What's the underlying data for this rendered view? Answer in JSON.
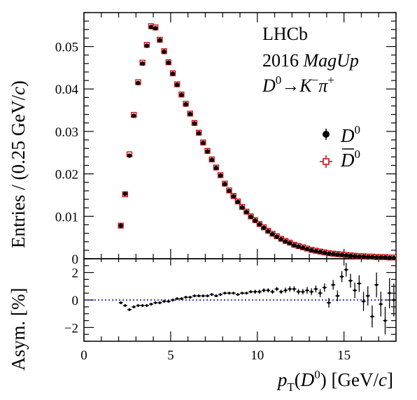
{
  "chart_data": [
    {
      "type": "scatter",
      "panel": "main",
      "ylabel_parts": [
        "Entries / (0.25 GeV/",
        "c",
        ")"
      ],
      "ylim": [
        0,
        0.058
      ],
      "xlim": [
        0,
        18
      ],
      "yticks": [
        0,
        0.01,
        0.02,
        0.03,
        0.04,
        0.05
      ],
      "ytick_labels": [
        "0",
        "0.01",
        "0.02",
        "0.03",
        "0.04",
        "0.05"
      ],
      "annotations": {
        "experiment": "LHCb",
        "year": "2016",
        "polarity": "MagUp",
        "decay_prefix": "D",
        "decay_sup0": "0",
        "decay_arrow": "→",
        "decay_k": "K",
        "decay_km": "−",
        "decay_pi": "π",
        "decay_pip": "+"
      },
      "legend": {
        "position": "right",
        "entries": [
          {
            "label": "D",
            "sup": "0",
            "marker": "filled-circle",
            "color": "#000000"
          },
          {
            "label": "D",
            "sup": "0",
            "overline": true,
            "marker": "open-square",
            "color": "#cc0000"
          }
        ]
      },
      "x": [
        2.125,
        2.375,
        2.625,
        2.875,
        3.125,
        3.375,
        3.625,
        3.875,
        4.125,
        4.375,
        4.625,
        4.875,
        5.125,
        5.375,
        5.625,
        5.875,
        6.125,
        6.375,
        6.625,
        6.875,
        7.125,
        7.375,
        7.625,
        7.875,
        8.125,
        8.375,
        8.625,
        8.875,
        9.125,
        9.375,
        9.625,
        9.875,
        10.125,
        10.375,
        10.625,
        10.875,
        11.125,
        11.375,
        11.625,
        11.875,
        12.125,
        12.375,
        12.625,
        12.875,
        13.125,
        13.375,
        13.625,
        13.875,
        14.125,
        14.375,
        14.625,
        14.875,
        15.125,
        15.375,
        15.625,
        15.875,
        16.125,
        16.375,
        16.625,
        16.875,
        17.125,
        17.375,
        17.625,
        17.875
      ],
      "series": [
        {
          "name": "D0",
          "values": [
            0.0078,
            0.0153,
            0.0243,
            0.0337,
            0.0414,
            0.046,
            0.0502,
            0.0546,
            0.0543,
            0.0515,
            0.0488,
            0.0462,
            0.0436,
            0.041,
            0.0386,
            0.0364,
            0.0341,
            0.0319,
            0.0296,
            0.0273,
            0.0253,
            0.0233,
            0.0214,
            0.0196,
            0.0176,
            0.016,
            0.0147,
            0.0134,
            0.0121,
            0.011,
            0.0099,
            0.009,
            0.0081,
            0.0073,
            0.0065,
            0.0058,
            0.0052,
            0.0046,
            0.0041,
            0.0037,
            0.0032,
            0.0029,
            0.0026,
            0.0023,
            0.002,
            0.0018,
            0.0016,
            0.0014,
            0.0012,
            0.0011,
            0.001,
            0.0009,
            0.0008,
            0.0007,
            0.0006,
            0.0005,
            0.0005,
            0.0004,
            0.0004,
            0.0003,
            0.0003,
            0.0003,
            0.0002,
            0.0002
          ]
        },
        {
          "name": "D0bar",
          "values": [
            0.0078,
            0.0152,
            0.0246,
            0.0339,
            0.0416,
            0.0462,
            0.0504,
            0.0548,
            0.0545,
            0.0516,
            0.0489,
            0.0463,
            0.0437,
            0.0411,
            0.0387,
            0.0365,
            0.0342,
            0.032,
            0.0297,
            0.0274,
            0.0254,
            0.0234,
            0.0215,
            0.0197,
            0.0177,
            0.0161,
            0.0148,
            0.0135,
            0.0122,
            0.0111,
            0.01,
            0.0091,
            0.0082,
            0.0074,
            0.0066,
            0.0059,
            0.0053,
            0.0047,
            0.0042,
            0.0038,
            0.0033,
            0.003,
            0.0027,
            0.0024,
            0.0021,
            0.0019,
            0.0017,
            0.0015,
            0.0013,
            0.0012,
            0.0011,
            0.001,
            0.0009,
            0.0008,
            0.0007,
            0.0006,
            0.0006,
            0.0005,
            0.0005,
            0.0004,
            0.0004,
            0.0004,
            0.0003,
            0.0003
          ]
        }
      ]
    },
    {
      "type": "scatter",
      "panel": "ratio",
      "ylabel": "Asym. [%]",
      "xlabel_parts": {
        "p": "p",
        "sub": "T",
        "open": "(",
        "d": "D",
        "sup": "0",
        "close": ") [GeV/",
        "c": "c",
        "end": "]"
      },
      "ylim": [
        -3,
        3
      ],
      "xlim": [
        0,
        18
      ],
      "yticks": [
        -2,
        0,
        2
      ],
      "ytick_labels": [
        "−2",
        "0",
        "2"
      ],
      "xticks": [
        0,
        5,
        10,
        15
      ],
      "xtick_labels": [
        "0",
        "5",
        "10",
        "15"
      ],
      "reference_line": {
        "y": 0,
        "color": "#0000cc",
        "style": "dotted"
      },
      "x": [
        4.875,
        5.125,
        5.375,
        5.625,
        5.875,
        6.125,
        6.375,
        6.625,
        6.875,
        7.125,
        7.375,
        7.625,
        7.875,
        8.125,
        8.375,
        8.625,
        8.875,
        9.125,
        9.375,
        9.625,
        9.875,
        10.125,
        10.375,
        10.625,
        10.875,
        11.125,
        11.375,
        11.625,
        11.875,
        12.125,
        12.375,
        12.625,
        12.875,
        13.125,
        13.375,
        13.625,
        13.875,
        14.125,
        14.375,
        14.625,
        14.875,
        15.125,
        15.375,
        15.625,
        15.875,
        16.125,
        16.375,
        16.625,
        16.875,
        17.125,
        17.375,
        17.625,
        17.875,
        2.125,
        2.375,
        2.625,
        2.875,
        3.125,
        3.375,
        3.625,
        3.875,
        4.125,
        4.375,
        4.625
      ],
      "values": [
        -0.1,
        0.0,
        0.1,
        0.1,
        0.2,
        0.2,
        0.3,
        0.3,
        0.3,
        0.3,
        0.4,
        0.3,
        0.4,
        0.5,
        0.5,
        0.5,
        0.4,
        0.5,
        0.5,
        0.6,
        0.6,
        0.6,
        0.7,
        0.7,
        0.6,
        0.8,
        0.6,
        0.7,
        0.8,
        0.8,
        0.6,
        0.6,
        0.7,
        0.6,
        0.8,
        0.5,
        0.9,
        -0.2,
        1.1,
        0.3,
        1.7,
        2.2,
        1.4,
        0.7,
        1.2,
        -0.1,
        0.3,
        -1.2,
        1.1,
        -0.3,
        -1.5,
        0.5,
        0.0,
        -0.2,
        -0.4,
        -0.7,
        -0.5,
        -0.4,
        -0.4,
        -0.4,
        -0.3,
        -0.2,
        -0.2,
        -0.1
      ],
      "errors": [
        0.1,
        0.1,
        0.1,
        0.1,
        0.1,
        0.1,
        0.1,
        0.1,
        0.1,
        0.1,
        0.1,
        0.1,
        0.1,
        0.1,
        0.1,
        0.1,
        0.1,
        0.1,
        0.1,
        0.1,
        0.15,
        0.15,
        0.15,
        0.15,
        0.15,
        0.15,
        0.15,
        0.2,
        0.2,
        0.2,
        0.2,
        0.2,
        0.25,
        0.25,
        0.25,
        0.3,
        0.3,
        0.35,
        0.35,
        0.4,
        0.4,
        0.5,
        0.5,
        0.55,
        0.6,
        0.7,
        0.7,
        0.8,
        0.9,
        0.9,
        1.0,
        1.1,
        1.2,
        0.1,
        0.1,
        0.1,
        0.1,
        0.1,
        0.1,
        0.1,
        0.1,
        0.1,
        0.1,
        0.1
      ]
    }
  ]
}
